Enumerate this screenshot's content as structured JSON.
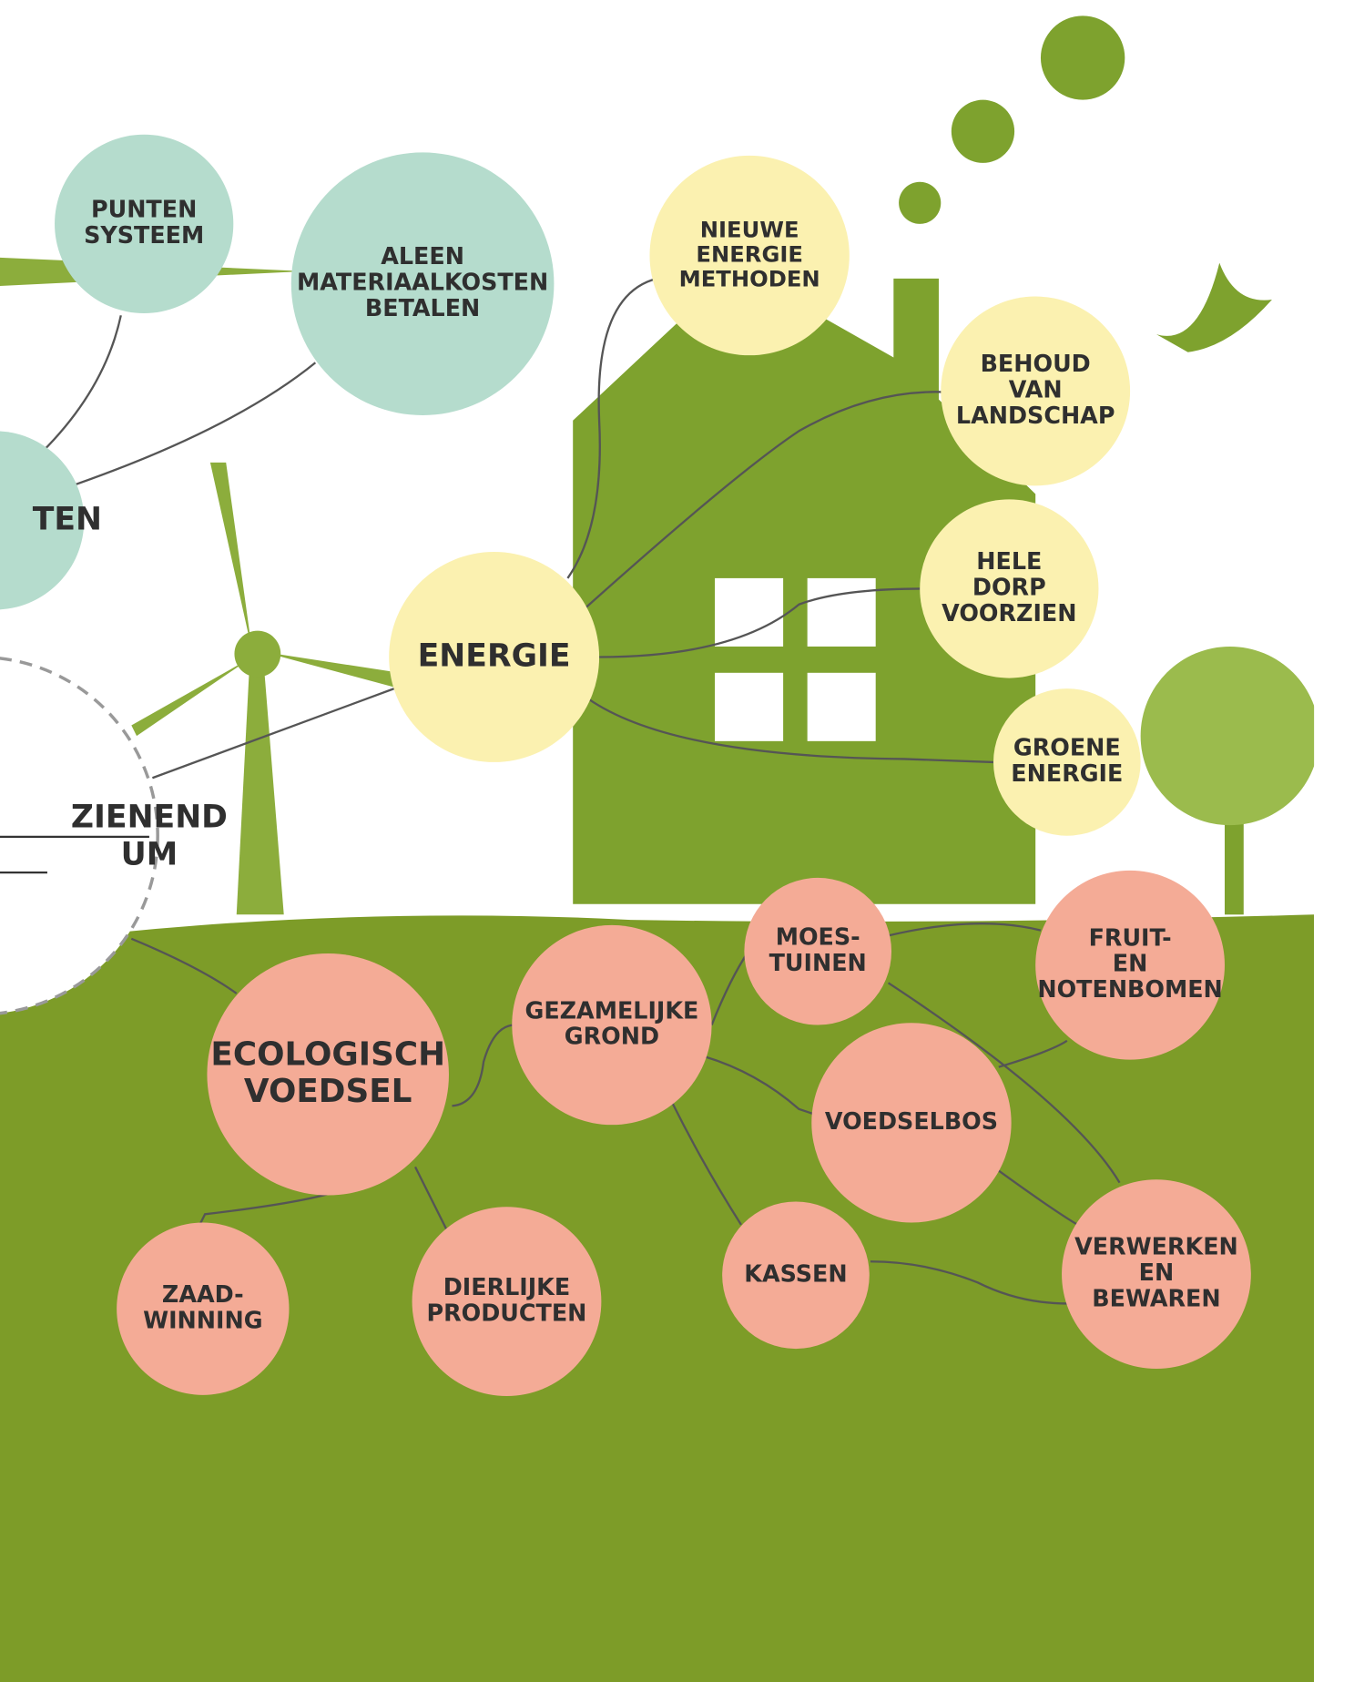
{
  "nodes": [
    {
      "label": [
        "PUNTEN",
        "SYSTEEM"
      ]
    },
    {
      "label": [
        "ALEEN",
        "MATERIAALKOSTEN",
        "BETALEN"
      ]
    },
    {
      "label": [
        "TEN"
      ]
    },
    {
      "label": [
        "ZIENEND",
        "UM"
      ]
    },
    {
      "label": [
        "NIEUWE",
        "ENERGIE",
        "METHODEN"
      ]
    },
    {
      "label": [
        "BEHOUD",
        "VAN",
        "LANDSCHAP"
      ]
    },
    {
      "label": [
        "HELE",
        "DORP",
        "VOORZIEN"
      ]
    },
    {
      "label": [
        "ENERGIE"
      ]
    },
    {
      "label": [
        "GROENE",
        "ENERGIE"
      ]
    },
    {
      "label": [
        "ECOLOGISCH",
        "VOEDSEL"
      ]
    },
    {
      "label": [
        "GEZAMELIJKE",
        "GROND"
      ]
    },
    {
      "label": [
        "MOES-",
        "TUINEN"
      ]
    },
    {
      "label": [
        "FRUIT-",
        "EN",
        "NOTENBOMEN"
      ]
    },
    {
      "label": [
        "VOEDSELBOS"
      ]
    },
    {
      "label": [
        "ZAAD-",
        "WINNING"
      ]
    },
    {
      "label": [
        "DIERLIJKE",
        "PRODUCTEN"
      ]
    },
    {
      "label": [
        "KASSEN"
      ]
    },
    {
      "label": [
        "VERWERKEN",
        "EN",
        "BEWAREN"
      ]
    }
  ]
}
